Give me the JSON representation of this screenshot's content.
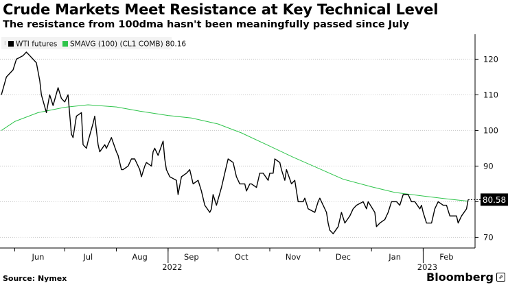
{
  "header": {
    "title": "Crude Markets Meet Resistance at Key Technical Level",
    "subtitle": "The resistance from 100dma hasn't been meaningfully passed since July"
  },
  "footer": {
    "source": "Source: Nymex",
    "brand": "Bloomberg"
  },
  "colors": {
    "wti": "#000000",
    "sma": "#2ec44b",
    "grid": "#c8c8c8",
    "last_label_bg": "#000000",
    "last_label_text": "#ffffff"
  },
  "chart_data": {
    "type": "line",
    "title": "Crude Markets Meet Resistance at Key Technical Level",
    "subtitle": "The resistance from 100dma hasn't been meaningfully passed since July",
    "y_axis_side": "right",
    "ylim": [
      67,
      127
    ],
    "yticks": [
      70,
      80,
      90,
      100,
      110,
      120
    ],
    "xlim": [
      "2022-05-24",
      "2023-02-28"
    ],
    "month_ticks": [
      {
        "label": "Jun",
        "date": "2022-06-01",
        "label_date": "2022-06-15"
      },
      {
        "label": "Jul",
        "date": "2022-07-01",
        "label_date": "2022-07-15"
      },
      {
        "label": "Aug",
        "date": "2022-08-01",
        "label_date": "2022-08-15"
      },
      {
        "label": "Sep",
        "date": "2022-09-01",
        "label_date": "2022-09-15"
      },
      {
        "label": "Oct",
        "date": "2022-10-01",
        "label_date": "2022-10-15"
      },
      {
        "label": "Nov",
        "date": "2022-11-01",
        "label_date": "2022-11-15"
      },
      {
        "label": "Dec",
        "date": "2022-12-01",
        "label_date": "2022-12-15"
      },
      {
        "label": "Jan",
        "date": "2023-01-01",
        "label_date": "2023-01-15"
      },
      {
        "label": "Feb",
        "date": "2023-02-01",
        "label_date": "2023-02-15"
      }
    ],
    "year_labels": [
      {
        "label": "2022",
        "date": "2022-09-01"
      },
      {
        "label": "2023",
        "date": "2023-02-01"
      }
    ],
    "legend": {
      "placement": "top-left"
    },
    "last_value_label": "80.58",
    "series": [
      {
        "name": "WTI futures",
        "color": "#000000",
        "points": [
          [
            "2022-05-24",
            110
          ],
          [
            "2022-05-27",
            115
          ],
          [
            "2022-05-31",
            117
          ],
          [
            "2022-06-02",
            120
          ],
          [
            "2022-06-06",
            121
          ],
          [
            "2022-06-08",
            122
          ],
          [
            "2022-06-10",
            121
          ],
          [
            "2022-06-14",
            119
          ],
          [
            "2022-06-16",
            114
          ],
          [
            "2022-06-17",
            110
          ],
          [
            "2022-06-20",
            105
          ],
          [
            "2022-06-22",
            110
          ],
          [
            "2022-06-24",
            107
          ],
          [
            "2022-06-27",
            112
          ],
          [
            "2022-06-29",
            109
          ],
          [
            "2022-07-01",
            108
          ],
          [
            "2022-07-03",
            110
          ],
          [
            "2022-07-05",
            99
          ],
          [
            "2022-07-06",
            98
          ],
          [
            "2022-07-08",
            104
          ],
          [
            "2022-07-11",
            105
          ],
          [
            "2022-07-12",
            96
          ],
          [
            "2022-07-14",
            95
          ],
          [
            "2022-07-15",
            97
          ],
          [
            "2022-07-18",
            102
          ],
          [
            "2022-07-19",
            104
          ],
          [
            "2022-07-21",
            96
          ],
          [
            "2022-07-22",
            94
          ],
          [
            "2022-07-25",
            96
          ],
          [
            "2022-07-26",
            95
          ],
          [
            "2022-07-28",
            97
          ],
          [
            "2022-07-29",
            98
          ],
          [
            "2022-08-01",
            94
          ],
          [
            "2022-08-02",
            93
          ],
          [
            "2022-08-04",
            89
          ],
          [
            "2022-08-05",
            89
          ],
          [
            "2022-08-08",
            90
          ],
          [
            "2022-08-10",
            92
          ],
          [
            "2022-08-12",
            92
          ],
          [
            "2022-08-15",
            89
          ],
          [
            "2022-08-16",
            87
          ],
          [
            "2022-08-18",
            90
          ],
          [
            "2022-08-19",
            91
          ],
          [
            "2022-08-22",
            90
          ],
          [
            "2022-08-23",
            94
          ],
          [
            "2022-08-24",
            95
          ],
          [
            "2022-08-26",
            93
          ],
          [
            "2022-08-29",
            97
          ],
          [
            "2022-08-30",
            92
          ],
          [
            "2022-08-31",
            89
          ],
          [
            "2022-09-02",
            87
          ],
          [
            "2022-09-06",
            86
          ],
          [
            "2022-09-07",
            82
          ],
          [
            "2022-09-09",
            87
          ],
          [
            "2022-09-12",
            88
          ],
          [
            "2022-09-14",
            89
          ],
          [
            "2022-09-16",
            85
          ],
          [
            "2022-09-19",
            86
          ],
          [
            "2022-09-21",
            83
          ],
          [
            "2022-09-23",
            79
          ],
          [
            "2022-09-26",
            77
          ],
          [
            "2022-09-27",
            78
          ],
          [
            "2022-09-28",
            82
          ],
          [
            "2022-09-30",
            79
          ],
          [
            "2022-10-03",
            84
          ],
          [
            "2022-10-05",
            88
          ],
          [
            "2022-10-07",
            92
          ],
          [
            "2022-10-10",
            91
          ],
          [
            "2022-10-12",
            87
          ],
          [
            "2022-10-14",
            85
          ],
          [
            "2022-10-17",
            85
          ],
          [
            "2022-10-18",
            83
          ],
          [
            "2022-10-20",
            85
          ],
          [
            "2022-10-21",
            85
          ],
          [
            "2022-10-24",
            84
          ],
          [
            "2022-10-26",
            88
          ],
          [
            "2022-10-28",
            88
          ],
          [
            "2022-10-31",
            86
          ],
          [
            "2022-11-01",
            88
          ],
          [
            "2022-11-03",
            88
          ],
          [
            "2022-11-04",
            92
          ],
          [
            "2022-11-07",
            91
          ],
          [
            "2022-11-08",
            89
          ],
          [
            "2022-11-10",
            86
          ],
          [
            "2022-11-11",
            89
          ],
          [
            "2022-11-14",
            85
          ],
          [
            "2022-11-16",
            86
          ],
          [
            "2022-11-18",
            80
          ],
          [
            "2022-11-21",
            80
          ],
          [
            "2022-11-22",
            81
          ],
          [
            "2022-11-24",
            78
          ],
          [
            "2022-11-28",
            77
          ],
          [
            "2022-11-30",
            80
          ],
          [
            "2022-12-01",
            81
          ],
          [
            "2022-12-02",
            80
          ],
          [
            "2022-12-05",
            77
          ],
          [
            "2022-12-06",
            74
          ],
          [
            "2022-12-07",
            72
          ],
          [
            "2022-12-09",
            71
          ],
          [
            "2022-12-12",
            73
          ],
          [
            "2022-12-14",
            77
          ],
          [
            "2022-12-16",
            74
          ],
          [
            "2022-12-19",
            76
          ],
          [
            "2022-12-21",
            78
          ],
          [
            "2022-12-23",
            79
          ],
          [
            "2022-12-27",
            80
          ],
          [
            "2022-12-29",
            78
          ],
          [
            "2022-12-30",
            80
          ],
          [
            "2023-01-03",
            77
          ],
          [
            "2023-01-04",
            73
          ],
          [
            "2023-01-06",
            74
          ],
          [
            "2023-01-09",
            75
          ],
          [
            "2023-01-11",
            77
          ],
          [
            "2023-01-13",
            80
          ],
          [
            "2023-01-16",
            80
          ],
          [
            "2023-01-18",
            79
          ],
          [
            "2023-01-20",
            82
          ],
          [
            "2023-01-23",
            82
          ],
          [
            "2023-01-25",
            80
          ],
          [
            "2023-01-27",
            80
          ],
          [
            "2023-01-30",
            78
          ],
          [
            "2023-01-31",
            79
          ],
          [
            "2023-02-01",
            77
          ],
          [
            "2023-02-03",
            74
          ],
          [
            "2023-02-06",
            74
          ],
          [
            "2023-02-08",
            78
          ],
          [
            "2023-02-10",
            80
          ],
          [
            "2023-02-13",
            79
          ],
          [
            "2023-02-15",
            79
          ],
          [
            "2023-02-17",
            76
          ],
          [
            "2023-02-21",
            76
          ],
          [
            "2023-02-22",
            74
          ],
          [
            "2023-02-24",
            76
          ],
          [
            "2023-02-27",
            78
          ],
          [
            "2023-02-28",
            80.58
          ]
        ]
      },
      {
        "name": "SMAVG (100) (CL1 COMB) 80.16",
        "color": "#2ec44b",
        "points": [
          [
            "2022-05-24",
            100
          ],
          [
            "2022-06-01",
            102.5
          ],
          [
            "2022-06-15",
            105
          ],
          [
            "2022-07-01",
            106.5
          ],
          [
            "2022-07-15",
            107.2
          ],
          [
            "2022-08-01",
            106.6
          ],
          [
            "2022-08-15",
            105.4
          ],
          [
            "2022-09-01",
            104.2
          ],
          [
            "2022-09-15",
            103.5
          ],
          [
            "2022-10-01",
            101.8
          ],
          [
            "2022-10-15",
            99.3
          ],
          [
            "2022-11-01",
            95.6
          ],
          [
            "2022-11-15",
            92.5
          ],
          [
            "2022-12-01",
            89.2
          ],
          [
            "2022-12-15",
            86.3
          ],
          [
            "2023-01-01",
            84.2
          ],
          [
            "2023-01-15",
            82.6
          ],
          [
            "2023-02-01",
            81.6
          ],
          [
            "2023-02-15",
            80.8
          ],
          [
            "2023-02-28",
            80.16
          ]
        ]
      }
    ]
  }
}
